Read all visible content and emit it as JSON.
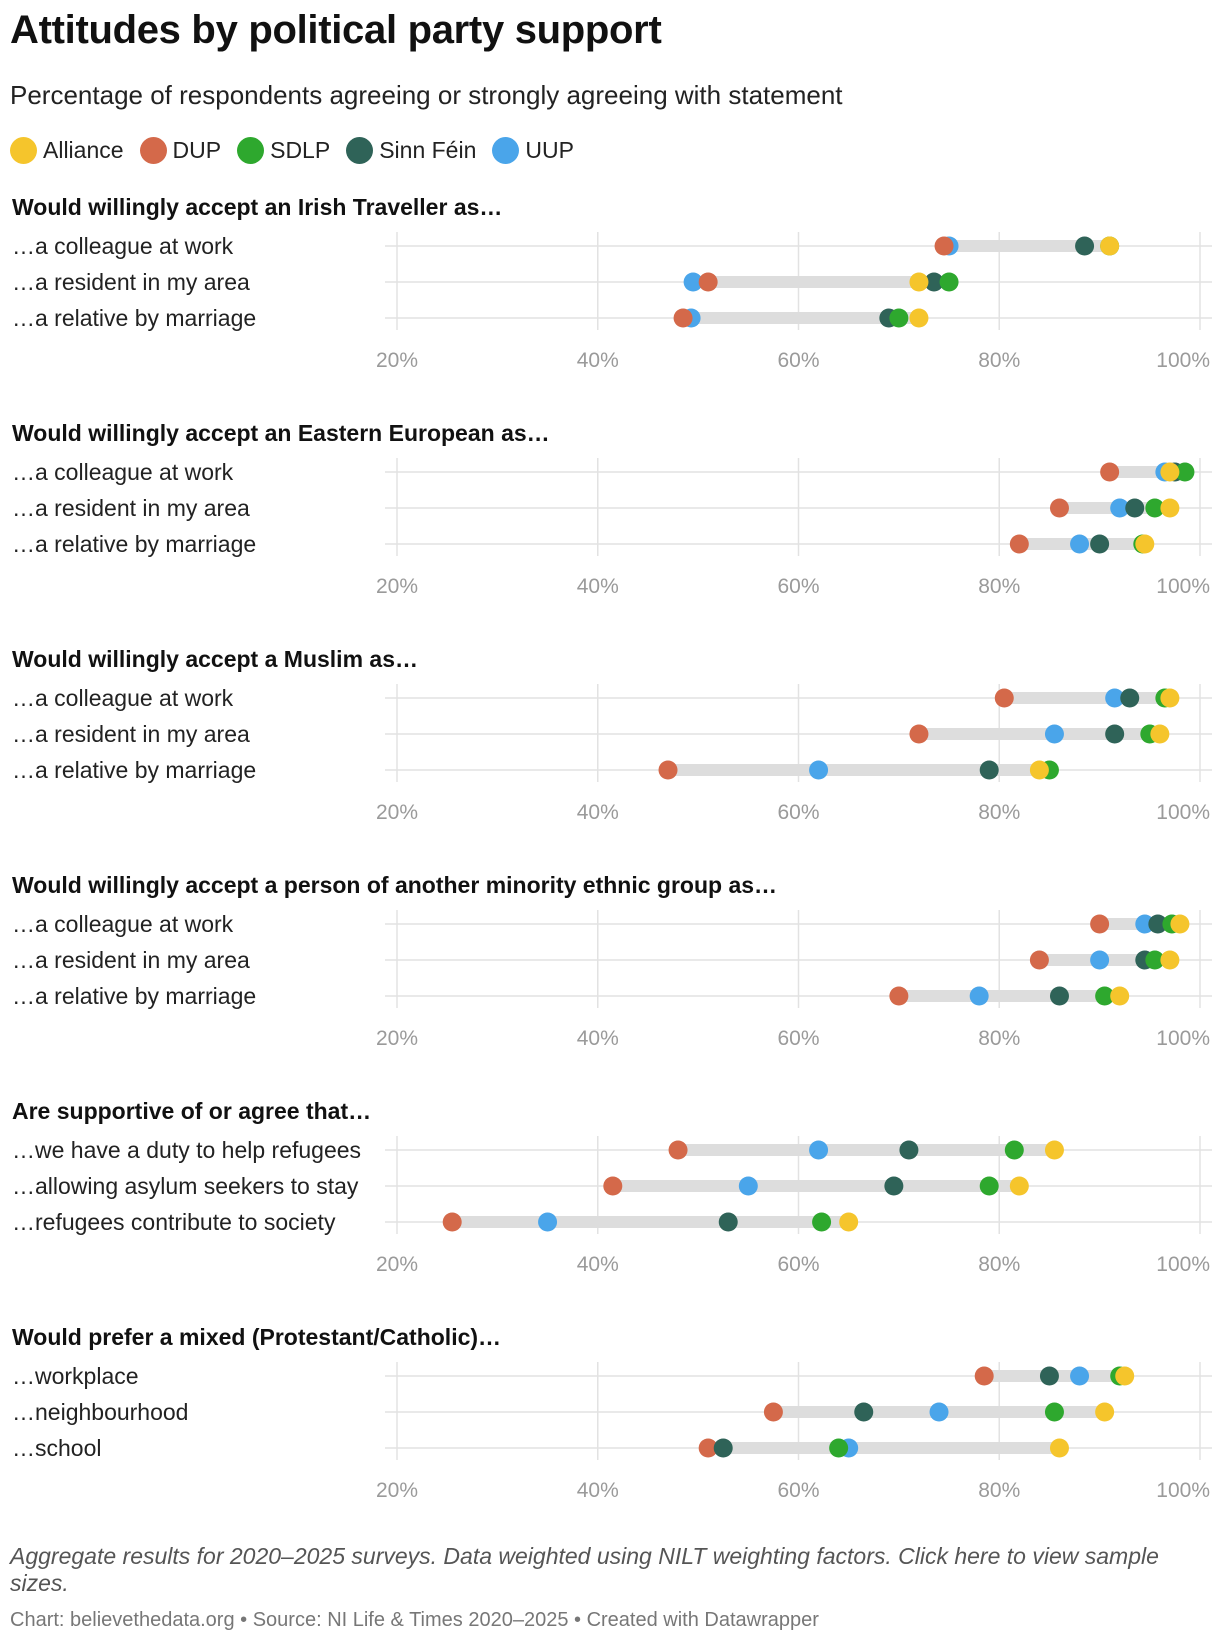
{
  "title": "Attitudes by political party support",
  "subtitle": "Percentage of respondents agreeing or strongly agreeing with statement",
  "footnote": "Aggregate results for 2020–2025 surveys. Data weighted using NILT weighting factors. Click here to view sample sizes.",
  "credits": "Chart: believethedata.org • Source: NI Life & Times 2020–2025 • Created with Datawrapper",
  "legend": [
    {
      "name": "Alliance",
      "color": "#f5c52c"
    },
    {
      "name": "DUP",
      "color": "#d4694a"
    },
    {
      "name": "SDLP",
      "color": "#2ea82e"
    },
    {
      "name": "Sinn Féin",
      "color": "#2f6358"
    },
    {
      "name": "UUP",
      "color": "#4aa5ea"
    }
  ],
  "chart_data": {
    "type": "scatter",
    "series": [
      "Alliance",
      "DUP",
      "SDLP",
      "Sinn Féin",
      "UUP"
    ],
    "x_ticks": [
      "20%",
      "40%",
      "60%",
      "80%",
      "100%"
    ],
    "xlim": [
      20,
      100
    ],
    "panels": [
      {
        "heading": "Would willingly accept an Irish Traveller as…",
        "rows": [
          {
            "label": "…a colleague at work",
            "values": {
              "Alliance": 91,
              "DUP": 74.5,
              "SDLP": 91,
              "Sinn Féin": 88.5,
              "UUP": 75
            }
          },
          {
            "label": "…a resident in my area",
            "values": {
              "Alliance": 72,
              "DUP": 51,
              "SDLP": 75,
              "Sinn Féin": 73.5,
              "UUP": 49.5
            }
          },
          {
            "label": "…a relative by marriage",
            "values": {
              "Alliance": 72,
              "DUP": 48.5,
              "SDLP": 70,
              "Sinn Féin": 69,
              "UUP": 49.3
            }
          }
        ]
      },
      {
        "heading": "Would willingly accept an Eastern European as…",
        "rows": [
          {
            "label": "…a colleague at work",
            "values": {
              "Alliance": 97,
              "DUP": 91,
              "SDLP": 98.5,
              "Sinn Féin": 97.5,
              "UUP": 96.5
            }
          },
          {
            "label": "…a resident in my area",
            "values": {
              "Alliance": 97,
              "DUP": 86,
              "SDLP": 95.5,
              "Sinn Féin": 93.5,
              "UUP": 92
            }
          },
          {
            "label": "…a relative by marriage",
            "values": {
              "Alliance": 94.5,
              "DUP": 82,
              "SDLP": 94.3,
              "Sinn Féin": 90,
              "UUP": 88
            }
          }
        ]
      },
      {
        "heading": "Would willingly accept a Muslim as…",
        "rows": [
          {
            "label": "…a colleague at work",
            "values": {
              "Alliance": 97,
              "DUP": 80.5,
              "SDLP": 96.5,
              "Sinn Féin": 93,
              "UUP": 91.5
            }
          },
          {
            "label": "…a resident in my area",
            "values": {
              "Alliance": 96,
              "DUP": 72,
              "SDLP": 95,
              "Sinn Féin": 91.5,
              "UUP": 85.5
            }
          },
          {
            "label": "…a relative by marriage",
            "values": {
              "Alliance": 84,
              "DUP": 47,
              "SDLP": 85,
              "Sinn Féin": 79,
              "UUP": 62
            }
          }
        ]
      },
      {
        "heading": "Would willingly accept a person of another minority ethnic group as…",
        "rows": [
          {
            "label": "…a colleague at work",
            "values": {
              "Alliance": 98,
              "DUP": 90,
              "SDLP": 97.2,
              "Sinn Féin": 95.8,
              "UUP": 94.5
            }
          },
          {
            "label": "…a resident in my area",
            "values": {
              "Alliance": 97,
              "DUP": 84,
              "SDLP": 95.5,
              "Sinn Féin": 94.5,
              "UUP": 90
            }
          },
          {
            "label": "…a relative by marriage",
            "values": {
              "Alliance": 92,
              "DUP": 70,
              "SDLP": 90.5,
              "Sinn Féin": 86,
              "UUP": 78
            }
          }
        ]
      },
      {
        "heading": "Are supportive of or agree that…",
        "rows": [
          {
            "label": "…we have a duty to help refugees",
            "values": {
              "Alliance": 85.5,
              "DUP": 48,
              "SDLP": 81.5,
              "Sinn Féin": 71,
              "UUP": 62
            }
          },
          {
            "label": "…allowing asylum seekers to stay",
            "values": {
              "Alliance": 82,
              "DUP": 41.5,
              "SDLP": 79,
              "Sinn Féin": 69.5,
              "UUP": 55
            }
          },
          {
            "label": "…refugees contribute to society",
            "values": {
              "Alliance": 65,
              "DUP": 25.5,
              "SDLP": 62.3,
              "Sinn Féin": 53,
              "UUP": 35
            }
          }
        ]
      },
      {
        "heading": "Would prefer a mixed (Protestant/Catholic)…",
        "rows": [
          {
            "label": "…workplace",
            "values": {
              "Alliance": 92.5,
              "DUP": 78.5,
              "SDLP": 92,
              "Sinn Féin": 85,
              "UUP": 88
            }
          },
          {
            "label": "…neighbourhood",
            "values": {
              "Alliance": 90.5,
              "DUP": 57.5,
              "SDLP": 85.5,
              "Sinn Féin": 66.5,
              "UUP": 74
            }
          },
          {
            "label": "…school",
            "values": {
              "Alliance": 86,
              "DUP": 51,
              "SDLP": 64,
              "Sinn Féin": 52.5,
              "UUP": 65
            }
          }
        ]
      }
    ]
  }
}
